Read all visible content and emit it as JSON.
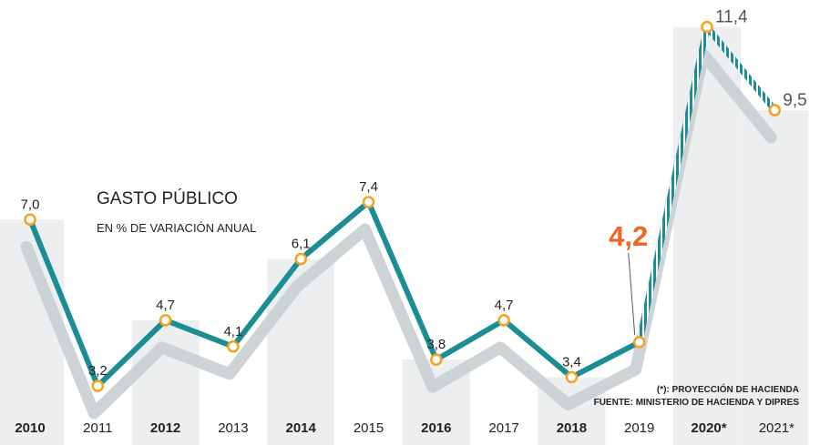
{
  "chart_data": {
    "type": "line",
    "title": "GASTO PÚBLICO",
    "subtitle": "EN % DE VARIACIÓN ANUAL",
    "categories": [
      "2010",
      "2011",
      "2012",
      "2013",
      "2014",
      "2015",
      "2016",
      "2017",
      "2018",
      "2019",
      "2020*",
      "2021*"
    ],
    "values": [
      7.0,
      3.2,
      4.7,
      4.1,
      6.1,
      7.4,
      3.8,
      4.7,
      3.4,
      4.2,
      11.4,
      9.5
    ],
    "value_labels": [
      "7,0",
      "3,2",
      "4,7",
      "4,1",
      "6,1",
      "7,4",
      "3,8",
      "4,7",
      "3,4",
      "4,2",
      "11,4",
      "9,5"
    ],
    "highlight_index": 9,
    "projection_from_index": 9,
    "ylim": [
      0,
      12
    ],
    "notes": [
      "(*): PROYECCIÓN DE HACIENDA",
      "FUENTE: MINISTERIO DE HACIENDA Y DIPRES"
    ],
    "colors": {
      "line": "#1b8e95",
      "marker_fill": "#ffffff",
      "marker_stroke": "#f5a21c",
      "highlight": "#f26522",
      "shadow": "#c9cfd1",
      "band": "#eceeef",
      "text": "#222222"
    }
  }
}
